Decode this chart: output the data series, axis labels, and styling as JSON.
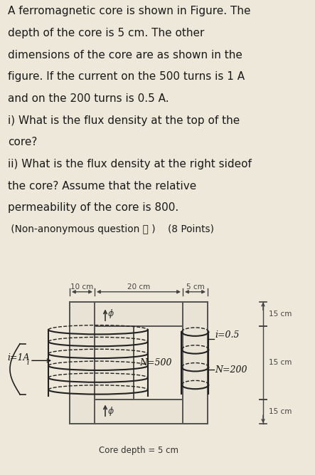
{
  "bg_color": "#ede8da",
  "text_color": "#1a1a1a",
  "title_lines": [
    "A ferromagnetic core is shown in Figure. The",
    "depth of the core is 5 cm. The other",
    "dimensions of the core are as shown in the",
    "figure. If the current on the 500 turns is 1 A",
    "and on the 200 turns is 0.5 A.",
    "i) What is the flux density at the top of the",
    "core?",
    "ii) What is the flux density at the right sideof",
    "the core? Assume that the relative",
    "permeability of the core is 800."
  ],
  "non_anon_line": " (Non-anonymous question ⓘ )    (8 Points)",
  "core_ec": "#555555",
  "core_fc": "#e8e3d4",
  "coil_color": "#222222",
  "dim_color": "#444444",
  "caption": "Core depth = 5 cm",
  "label_i1": "i=1A",
  "label_i": "i",
  "label_i2": "i=0.5",
  "label_N500": "N=500",
  "label_N200": "N=200",
  "dim_10cm": "10 cm",
  "dim_20cm": "20 cm",
  "dim_5cm": "5 cm",
  "dim_15cm_1": "15 cm",
  "dim_15cm_2": "15 cm",
  "dim_15cm_3": "15 cm"
}
